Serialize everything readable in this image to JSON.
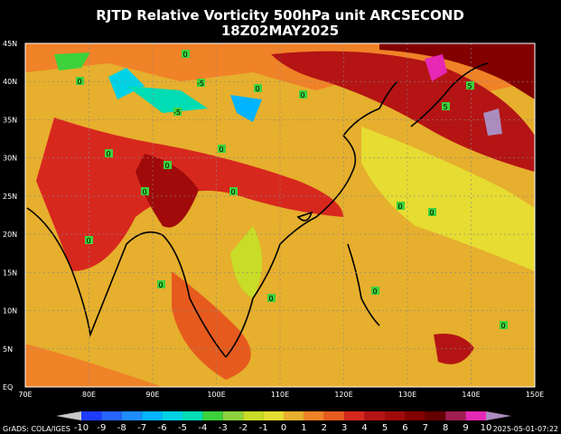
{
  "title": "RJTD Relative Vorticity 500hPa unit ARCSECOND",
  "subtitle": "18Z02MAY2025",
  "lat_labels": [
    "45N",
    "40N",
    "35N",
    "30N",
    "25N",
    "20N",
    "15N",
    "10N",
    "5N",
    "EQ"
  ],
  "lon_labels": [
    "70E",
    "80E",
    "90E",
    "100E",
    "110E",
    "120E",
    "130E",
    "140E",
    "150E"
  ],
  "colorbar": {
    "labels": [
      -10,
      -9,
      -8,
      -7,
      -6,
      -5,
      -4,
      -3,
      -2,
      -1,
      0,
      1,
      2,
      3,
      4,
      5,
      6,
      7,
      8,
      9,
      10
    ],
    "colors": [
      "#c8c8c8",
      "#1e3cff",
      "#2864ff",
      "#1e8cff",
      "#00b4ff",
      "#00d2e6",
      "#00dcb4",
      "#3cd23c",
      "#8cd23c",
      "#c8dc28",
      "#e6dc32",
      "#e6af2d",
      "#f08228",
      "#e65a1e",
      "#d7281e",
      "#b41414",
      "#a00a0a",
      "#820000",
      "#640000",
      "#a01e50",
      "#e628b4",
      "#aa8cbe"
    ]
  },
  "footer": "GrADS: COLA/IGES",
  "timestamp": "2025-05-01-07:22",
  "contour_labels": [
    "0",
    "0",
    "0",
    "0",
    "0",
    "0",
    "0",
    "0",
    "0",
    "0",
    "0",
    "0",
    "0",
    "0",
    "0",
    "-5",
    "-5",
    "5",
    "5",
    "0"
  ]
}
